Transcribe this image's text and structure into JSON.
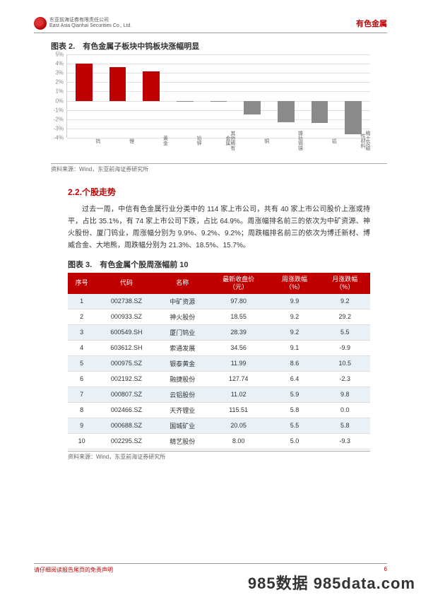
{
  "header": {
    "company_cn": "东亚前海证券有限责任公司",
    "company_en": "East Asia Qianhai Securities Co., Ltd.",
    "sector": "有色金属"
  },
  "chart": {
    "title": "图表 2.　有色金属子板块中钨板块涨幅明显",
    "type": "bar",
    "y_ticks": [
      "5%",
      "4%",
      "3%",
      "2%",
      "1%",
      "0%",
      "-1%",
      "-2%",
      "-3%",
      "-4%"
    ],
    "ylim": [
      -4,
      5
    ],
    "categories": [
      "钨",
      "锂",
      "黄金",
      "铅锌",
      "其他稀有金属",
      "铜",
      "镍钴锡锑",
      "铝",
      "稀土及磁性材料"
    ],
    "values": [
      4.0,
      3.6,
      3.2,
      -0.1,
      -0.1,
      -1.5,
      -2.3,
      -2.4,
      -3.6
    ],
    "pos_color": "#c00000",
    "neg_color": "#8a8a8a",
    "grid_color": "#e0e0e0",
    "source": "资料来源：Wind，东亚前海证券研究所"
  },
  "section": {
    "title": "2.2.个股走势",
    "body": "过去一周，中信有色金属行业分类中的 114 家上市公司，共有 40 家上市公司股价上涨或持平，占比 35.1%，有 74 家上市公司下跌，占比 64.9%。周涨幅排名前三的依次为中矿资源、神火股份、厦门钨业，周涨幅分别为 9.9%、9.2%、9.2%；周跌幅排名前三的依次为博迁新材、博威合金、大地熊，周跌幅分别为 21.3%、18.5%、15.7%。"
  },
  "table": {
    "title": "图表 3.　有色金属个股周涨幅前 10",
    "columns": [
      "序号",
      "代码",
      "名称",
      "最新收盘价（元）",
      "周涨跌幅（%）",
      "月涨跌幅（%）"
    ],
    "rows": [
      [
        "1",
        "002738.SZ",
        "中矿资源",
        "97.80",
        "9.9",
        "9.2"
      ],
      [
        "2",
        "000933.SZ",
        "神火股份",
        "18.55",
        "9.2",
        "29.2"
      ],
      [
        "3",
        "600549.SH",
        "厦门钨业",
        "28.39",
        "9.2",
        "5.5"
      ],
      [
        "4",
        "603612.SH",
        "索通发展",
        "34.56",
        "9.1",
        "-9.9"
      ],
      [
        "5",
        "000975.SZ",
        "银泰黄金",
        "11.99",
        "8.6",
        "10.5"
      ],
      [
        "6",
        "002192.SZ",
        "融捷股份",
        "127.74",
        "6.4",
        "-2.3"
      ],
      [
        "7",
        "000807.SZ",
        "云铝股份",
        "11.02",
        "5.9",
        "9.8"
      ],
      [
        "8",
        "002466.SZ",
        "天齐锂业",
        "115.51",
        "5.8",
        "0.0"
      ],
      [
        "9",
        "000688.SZ",
        "国城矿业",
        "20.05",
        "5.5",
        "5.8"
      ],
      [
        "10",
        "002295.SZ",
        "精艺股份",
        "8.00",
        "5.0",
        "-9.3"
      ]
    ],
    "source": "资料来源：Wind，东亚前海证券研究所"
  },
  "footer": {
    "disclaimer": "请仔细阅读报告尾页的免责声明",
    "page_no": "6"
  },
  "watermark": "985数据 985data.com"
}
